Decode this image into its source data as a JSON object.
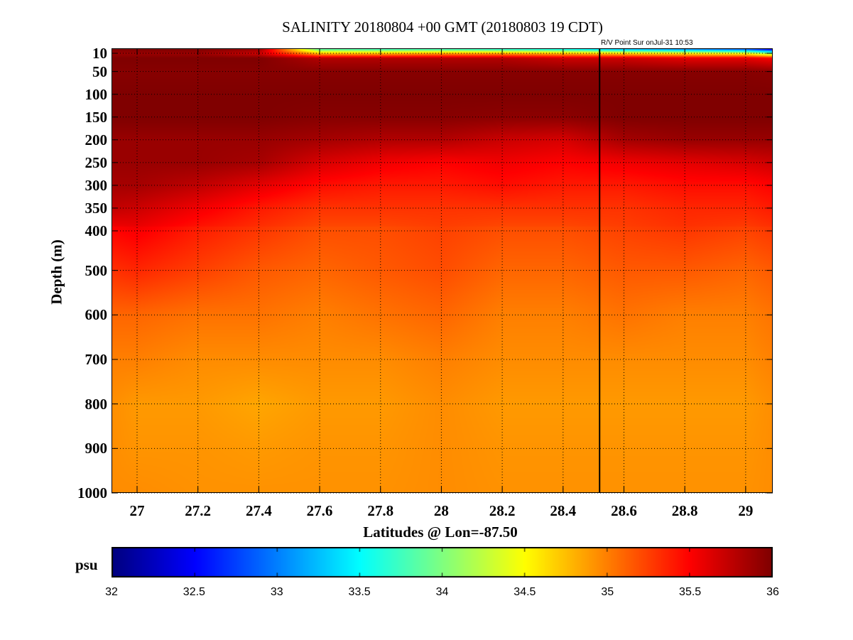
{
  "chart_data": {
    "type": "heatmap",
    "title": "SALINITY 20180804 +00 GMT (20180803 19 CDT)",
    "annotation": "R/V Point Sur onJul-31 10:53",
    "xlabel": "Latitudes @ Lon=-87.50",
    "ylabel": "Depth (m)",
    "xlim": [
      26.916,
      29.089
    ],
    "ylim": [
      1000,
      0
    ],
    "x_ticks": [
      "27",
      "27.2",
      "27.4",
      "27.6",
      "27.8",
      "28",
      "28.2",
      "28.4",
      "28.6",
      "28.8",
      "29"
    ],
    "y_ticks": [
      "10",
      "50",
      "100",
      "150",
      "200",
      "250",
      "300",
      "350",
      "400",
      "500",
      "600",
      "700",
      "800",
      "900",
      "1000"
    ],
    "grid": true,
    "vertical_marker_lat": 28.52,
    "colorbar": {
      "label": "psu",
      "colormap": "jet",
      "range": [
        32,
        36
      ],
      "ticks": [
        "32",
        "32.5",
        "33",
        "33.5",
        "34",
        "34.5",
        "35",
        "35.5",
        "36"
      ]
    },
    "latitudes": [
      26.9,
      27.0,
      27.2,
      27.4,
      27.6,
      27.8,
      28.0,
      28.2,
      28.4,
      28.6,
      28.8,
      29.0,
      29.1
    ],
    "depths": [
      0,
      10,
      20,
      50,
      100,
      150,
      200,
      250,
      300,
      350,
      400,
      500,
      600,
      700,
      800,
      900,
      1000
    ],
    "values": [
      [
        36,
        36,
        36,
        35.9,
        33.8,
        33.7,
        33.7,
        33.6,
        33.5,
        33.2,
        33.0,
        32.8,
        32.3
      ],
      [
        35.9,
        35.9,
        35.9,
        35.7,
        34.8,
        34.8,
        34.9,
        34.9,
        34.8,
        34.7,
        34.6,
        34.5,
        34.0
      ],
      [
        36,
        36,
        36,
        36,
        35.8,
        35.8,
        35.8,
        35.8,
        35.7,
        35.7,
        35.6,
        35.6,
        35.5
      ],
      [
        35.97,
        35.97,
        35.97,
        35.97,
        35.97,
        35.97,
        35.97,
        35.97,
        35.97,
        35.97,
        35.97,
        35.97,
        35.95
      ],
      [
        36,
        36,
        36,
        36,
        36,
        36,
        36,
        36,
        36,
        36,
        36,
        36,
        36
      ],
      [
        36,
        36,
        36,
        36,
        35.97,
        35.97,
        35.97,
        35.95,
        35.95,
        36,
        36,
        36,
        36
      ],
      [
        35.9,
        35.9,
        35.9,
        35.9,
        35.85,
        35.8,
        35.8,
        35.7,
        35.65,
        35.85,
        35.9,
        35.9,
        35.9
      ],
      [
        35.9,
        35.9,
        35.9,
        35.85,
        35.65,
        35.55,
        35.5,
        35.55,
        35.5,
        35.55,
        35.6,
        35.65,
        35.7
      ],
      [
        35.85,
        35.85,
        35.75,
        35.6,
        35.45,
        35.4,
        35.4,
        35.45,
        35.4,
        35.4,
        35.45,
        35.45,
        35.5
      ],
      [
        35.75,
        35.7,
        35.55,
        35.4,
        35.3,
        35.3,
        35.3,
        35.3,
        35.3,
        35.3,
        35.35,
        35.35,
        35.4
      ],
      [
        35.5,
        35.55,
        35.4,
        35.3,
        35.2,
        35.2,
        35.25,
        35.2,
        35.2,
        35.25,
        35.3,
        35.25,
        35.3
      ],
      [
        35.3,
        35.35,
        35.25,
        35.15,
        35.1,
        35.15,
        35.2,
        35.1,
        35.1,
        35.15,
        35.15,
        35.1,
        35.15
      ],
      [
        35.1,
        35.1,
        35.05,
        35.05,
        35.0,
        35.05,
        35.1,
        35.0,
        35.0,
        35.05,
        35.0,
        35.0,
        35.05
      ],
      [
        35.0,
        35.0,
        34.95,
        34.95,
        34.95,
        34.95,
        35.0,
        34.95,
        34.95,
        34.95,
        34.95,
        34.95,
        35.0
      ],
      [
        34.95,
        34.9,
        34.9,
        34.85,
        34.9,
        34.9,
        34.95,
        34.9,
        34.9,
        34.9,
        34.9,
        34.9,
        34.95
      ],
      [
        34.95,
        34.92,
        34.92,
        34.9,
        34.92,
        34.92,
        34.95,
        34.92,
        34.92,
        34.92,
        34.92,
        34.92,
        34.95
      ],
      [
        34.95,
        34.95,
        34.93,
        34.93,
        34.93,
        34.93,
        34.95,
        34.93,
        34.93,
        34.93,
        34.93,
        34.93,
        34.95
      ]
    ]
  }
}
